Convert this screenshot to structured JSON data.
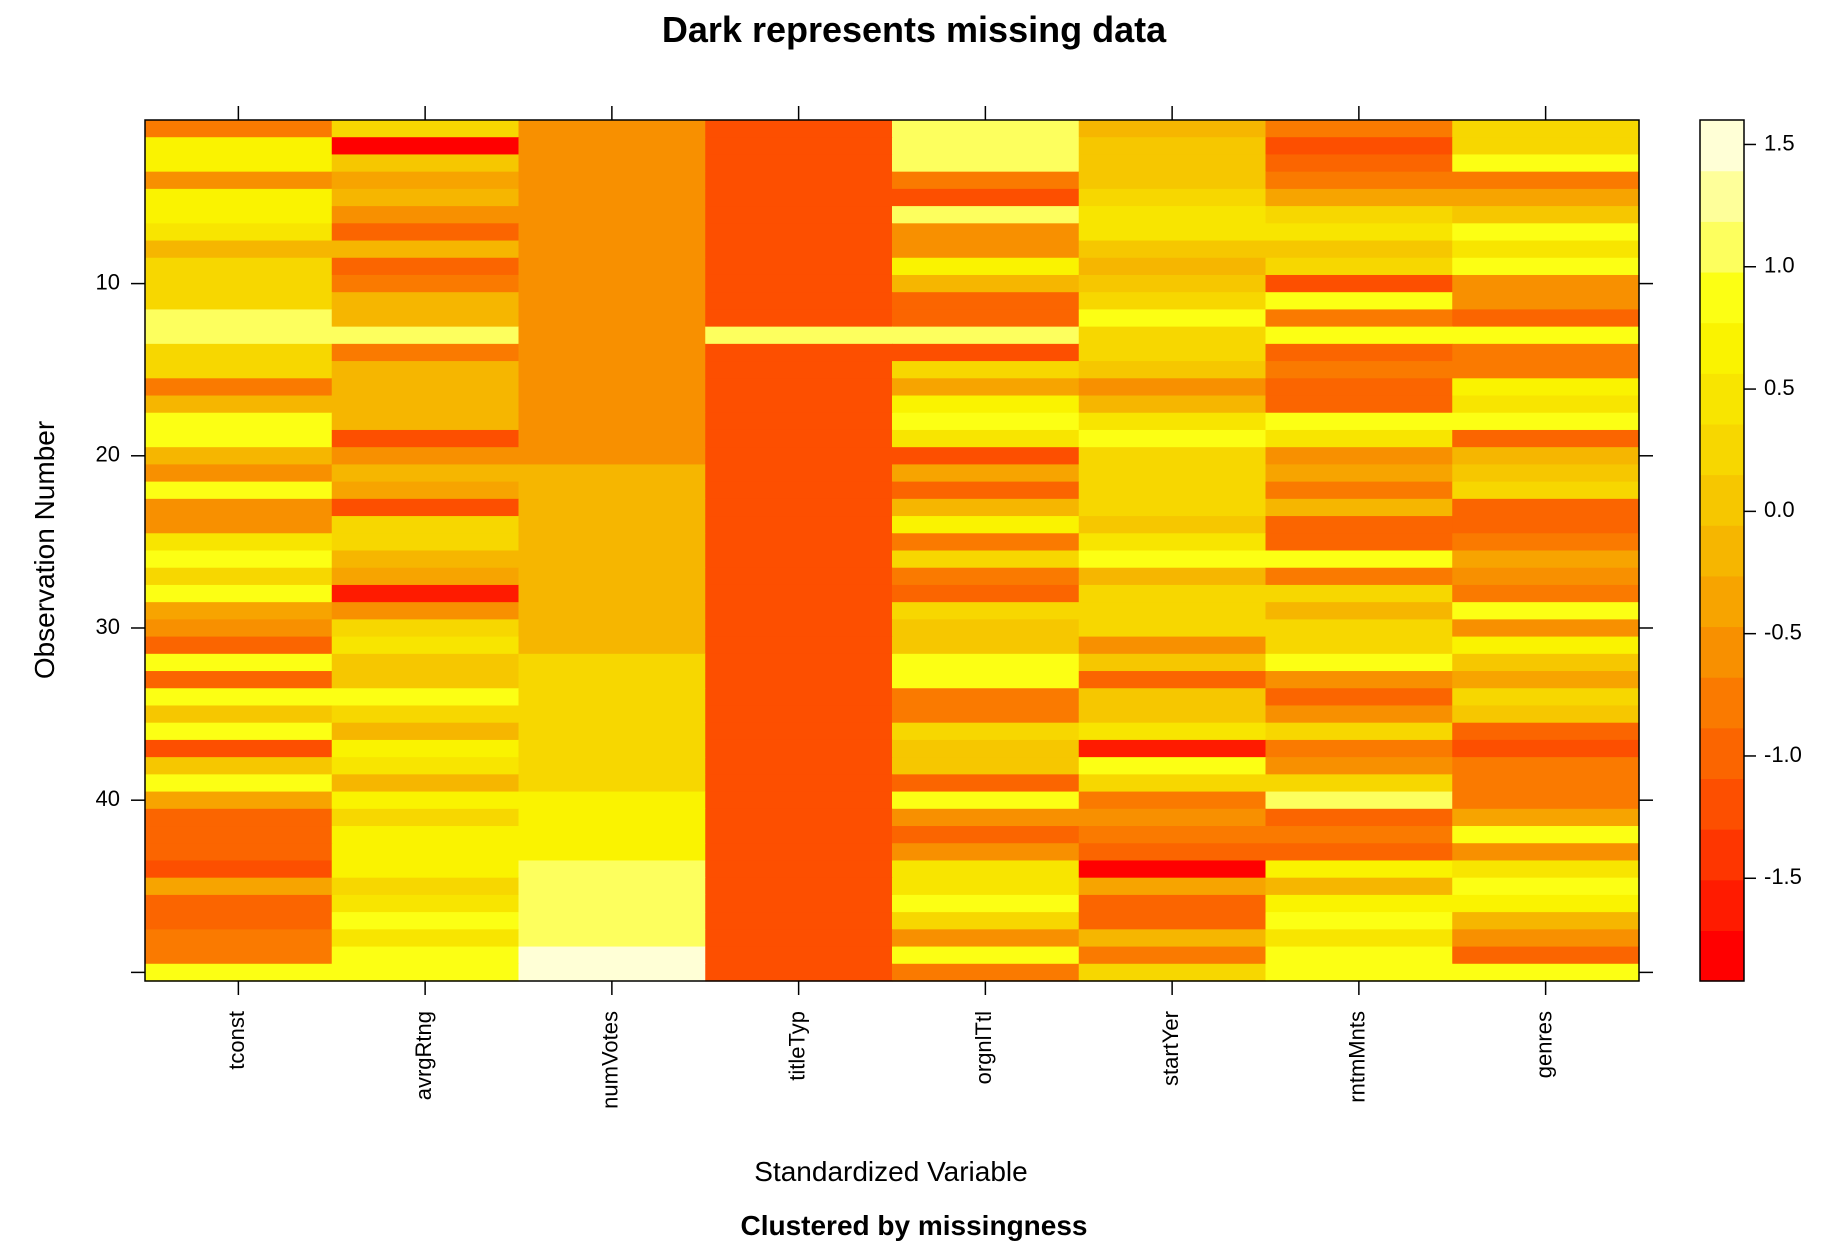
{
  "chart_data": {
    "type": "heatmap",
    "title": "Dark represents missing data",
    "subtitle": "Clustered by missingness",
    "xlabel": "Standardized Variable",
    "ylabel": "Observation Number",
    "columns": [
      "tconst",
      "avrgRtng",
      "numVotes",
      "titleTyp",
      "orgnlTtl",
      "startYer",
      "rntmMnts",
      "genres"
    ],
    "row_count": 50,
    "y_ticks": [
      10,
      20,
      30,
      40
    ],
    "colorbar": {
      "range": [
        -1.92,
        1.6
      ],
      "ticks": [
        -1.5,
        -1.0,
        -0.5,
        0.0,
        0.5,
        1.0,
        1.5
      ],
      "tick_labels": [
        "-1.5",
        "-1.0",
        "-0.5",
        "0.0",
        "0.5",
        "1.0",
        "1.5"
      ],
      "palette": [
        "#ff0000",
        "#ff1b00",
        "#fe3600",
        "#fd4f00",
        "#fb6500",
        "#fa7a00",
        "#f89000",
        "#f7a400",
        "#f6b600",
        "#f6c700",
        "#f7d700",
        "#f8e500",
        "#faf300",
        "#fcff14",
        "#fdff5e",
        "#feff9a",
        "#ffffd6"
      ]
    },
    "values": [
      [
        -0.8,
        0.3,
        -0.6,
        -1.1,
        1.0,
        -0.2,
        -0.8,
        0.2
      ],
      [
        0.6,
        -1.8,
        -0.6,
        -1.1,
        1.0,
        0.0,
        -1.2,
        0.3
      ],
      [
        0.7,
        0.1,
        -0.6,
        -1.1,
        1.0,
        0.1,
        -1.0,
        0.9
      ],
      [
        -0.5,
        -0.3,
        -0.6,
        -1.1,
        -0.7,
        0.0,
        -0.7,
        -0.7
      ],
      [
        0.7,
        -0.1,
        -0.6,
        -1.1,
        -1.1,
        0.3,
        -0.4,
        -0.3
      ],
      [
        0.7,
        -0.6,
        -0.6,
        -1.1,
        1.0,
        0.4,
        0.2,
        0.1
      ],
      [
        0.4,
        -0.9,
        -0.6,
        -1.1,
        -0.6,
        0.5,
        0.4,
        0.8
      ],
      [
        -0.1,
        -0.2,
        -0.6,
        -1.1,
        -0.6,
        0.1,
        0.1,
        0.4
      ],
      [
        0.3,
        -1.0,
        -0.6,
        -1.1,
        0.7,
        -0.1,
        0.3,
        0.9
      ],
      [
        0.2,
        -0.7,
        -0.6,
        -1.1,
        -0.1,
        0.0,
        -1.2,
        -0.6
      ],
      [
        0.2,
        -0.1,
        -0.6,
        -1.1,
        -0.9,
        0.2,
        0.9,
        -0.6
      ],
      [
        1.0,
        -0.1,
        -0.6,
        -1.1,
        -0.9,
        0.8,
        -0.7,
        -0.9
      ],
      [
        1.0,
        1.0,
        -0.6,
        1.0,
        1.0,
        0.3,
        0.9,
        0.9
      ],
      [
        0.3,
        -0.8,
        -0.6,
        -1.1,
        -1.2,
        0.3,
        -1.0,
        -0.8
      ],
      [
        0.3,
        -0.1,
        -0.6,
        -1.1,
        0.3,
        0.1,
        -0.8,
        -0.8
      ],
      [
        -0.8,
        -0.1,
        -0.6,
        -1.1,
        -0.3,
        -0.5,
        -1.0,
        0.7
      ],
      [
        -0.2,
        -0.1,
        -0.6,
        -1.1,
        0.6,
        -0.2,
        -1.0,
        0.4
      ],
      [
        0.9,
        -0.1,
        -0.6,
        -1.1,
        0.9,
        0.4,
        0.8,
        0.8
      ],
      [
        0.9,
        -1.1,
        -0.6,
        -1.1,
        0.5,
        0.8,
        0.5,
        -0.9
      ],
      [
        -0.2,
        -0.6,
        -0.6,
        -1.1,
        -1.1,
        0.3,
        -0.6,
        -0.2
      ],
      [
        -0.6,
        -0.1,
        -0.1,
        -1.1,
        -0.3,
        0.3,
        -0.3,
        0.1
      ],
      [
        0.8,
        -0.3,
        -0.1,
        -1.1,
        -0.9,
        0.3,
        -0.7,
        0.3
      ],
      [
        -0.6,
        -1.1,
        -0.1,
        -1.1,
        -0.1,
        0.3,
        -0.2,
        -0.9
      ],
      [
        -0.6,
        0.2,
        -0.1,
        -1.1,
        0.6,
        0.0,
        -0.9,
        -1.0
      ],
      [
        0.4,
        0.2,
        -0.1,
        -1.1,
        -0.8,
        0.4,
        -0.9,
        -0.7
      ],
      [
        0.8,
        -0.1,
        -0.1,
        -1.1,
        0.3,
        0.8,
        0.8,
        -0.3
      ],
      [
        0.2,
        -0.3,
        -0.1,
        -1.1,
        -0.7,
        -0.1,
        -0.8,
        -0.6
      ],
      [
        0.9,
        -1.7,
        -0.1,
        -1.1,
        -1.0,
        0.3,
        0.3,
        -0.8
      ],
      [
        -0.3,
        -0.5,
        -0.1,
        -1.1,
        0.3,
        0.3,
        -0.1,
        0.8
      ],
      [
        -0.6,
        0.2,
        -0.1,
        -1.1,
        0.0,
        0.2,
        0.2,
        -0.5
      ],
      [
        -0.9,
        0.4,
        -0.1,
        -1.1,
        0.0,
        -0.6,
        0.3,
        0.7
      ],
      [
        0.8,
        0.1,
        0.2,
        -1.1,
        0.8,
        0.1,
        0.9,
        0.1
      ],
      [
        -1.0,
        0.1,
        0.2,
        -1.1,
        0.8,
        -0.9,
        -0.6,
        -0.3
      ],
      [
        0.9,
        0.8,
        0.2,
        -1.1,
        -0.7,
        0.0,
        -0.9,
        0.2
      ],
      [
        0.1,
        0.3,
        0.2,
        -1.1,
        -0.7,
        0.0,
        -0.5,
        0.1
      ],
      [
        0.9,
        -0.2,
        0.3,
        -1.1,
        0.3,
        0.4,
        0.2,
        -1.0
      ],
      [
        -1.2,
        0.7,
        0.3,
        -1.1,
        0.1,
        -1.6,
        -0.8,
        -1.1
      ],
      [
        0.1,
        0.4,
        0.3,
        -1.1,
        0.1,
        0.8,
        -0.6,
        -0.8
      ],
      [
        0.8,
        -0.1,
        0.3,
        -1.1,
        -1.0,
        0.3,
        0.2,
        -0.8
      ],
      [
        -0.4,
        0.6,
        0.6,
        -1.1,
        0.8,
        -0.8,
        1.0,
        -0.7
      ],
      [
        -0.9,
        0.2,
        0.6,
        -1.1,
        -0.6,
        -0.6,
        -0.9,
        -0.3
      ],
      [
        -1.0,
        0.6,
        0.6,
        -1.1,
        -0.9,
        -0.8,
        -0.7,
        0.9
      ],
      [
        -1.0,
        0.6,
        0.6,
        -1.1,
        -0.6,
        -1.0,
        -0.9,
        -0.6
      ],
      [
        -1.2,
        0.7,
        1.0,
        -1.1,
        0.5,
        -1.8,
        0.7,
        0.4
      ],
      [
        -0.4,
        0.3,
        1.0,
        -1.1,
        0.4,
        -0.3,
        -0.1,
        0.8
      ],
      [
        -1.0,
        0.5,
        1.0,
        -1.1,
        0.8,
        -0.9,
        0.6,
        0.6
      ],
      [
        -1.0,
        0.9,
        1.0,
        -1.1,
        0.2,
        -1.0,
        0.8,
        -0.1
      ],
      [
        -0.8,
        0.4,
        1.0,
        -1.1,
        -0.6,
        -0.2,
        0.4,
        -0.6
      ],
      [
        -0.8,
        0.9,
        1.5,
        -1.1,
        0.9,
        -0.7,
        0.9,
        -1.0
      ],
      [
        0.8,
        0.8,
        1.5,
        -1.1,
        -0.8,
        0.3,
        0.9,
        0.9
      ]
    ]
  }
}
